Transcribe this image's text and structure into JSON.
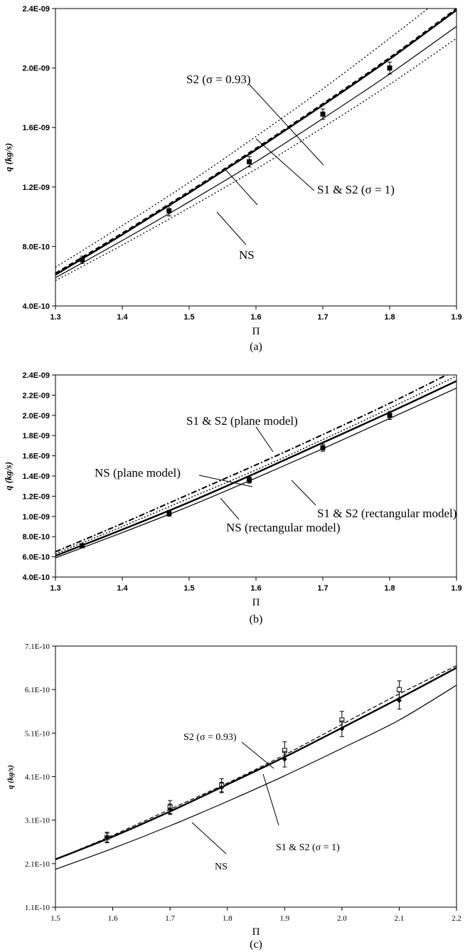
{
  "panels": [
    {
      "caption": "(a)",
      "ylabel": "q (kg/s)",
      "xlabel": "Π",
      "xticks": [
        "1.3",
        "1.4",
        "1.5",
        "1.6",
        "1.7",
        "1.8",
        "1.9"
      ],
      "yticks": [
        "4.0E-10",
        "8.0E-10",
        "1.2E-09",
        "1.6E-09",
        "2.0E-09",
        "2.4E-09"
      ],
      "annotations": [
        "S2 (σ = 0.93)",
        "S1 & S2 (σ = 1)",
        "NS"
      ]
    },
    {
      "caption": "(b)",
      "ylabel": "q (kg/s)",
      "xlabel": "Π",
      "xticks": [
        "1.3",
        "1.4",
        "1.5",
        "1.6",
        "1.7",
        "1.8",
        "1.9"
      ],
      "yticks": [
        "4.0E-10",
        "6.0E-10",
        "8.0E-10",
        "1.0E-09",
        "1.2E-09",
        "1.4E-09",
        "1.6E-09",
        "1.8E-09",
        "2.0E-09",
        "2.2E-09",
        "2.4E-09"
      ],
      "annotations": [
        "S1 & S2 (plane model)",
        "NS (plane model)",
        "S1 & S2 (rectangular model)",
        "NS (rectangular model)"
      ]
    },
    {
      "caption": "(c)",
      "ylabel": "q (kg/s)",
      "xlabel": "Π",
      "xticks": [
        "1.5",
        "1.6",
        "1.7",
        "1.8",
        "1.9",
        "2.0",
        "2.1",
        "2.2"
      ],
      "yticks": [
        "1.1E-10",
        "2.1E-10",
        "3.1E-10",
        "4.1E-10",
        "5.1E-10",
        "6.1E-10",
        "7.1E-10"
      ],
      "annotations": [
        "S2 (σ  = 0.93)",
        "S1 & S2 (σ = 1)",
        "NS"
      ]
    }
  ],
  "chart_data": [
    {
      "type": "line",
      "title": "",
      "xlabel": "Π",
      "ylabel": "q (kg/s)",
      "xlim": [
        1.3,
        1.9
      ],
      "ylim": [
        4e-10,
        2.4e-09
      ],
      "grid": false,
      "series": [
        {
          "name": "S2 (σ = 0.93)",
          "style": "dashed-thick",
          "x": [
            1.3,
            1.4,
            1.5,
            1.6,
            1.7,
            1.8,
            1.9
          ],
          "y": [
            6.2e-10,
            8.9e-10,
            1.17e-09,
            1.46e-09,
            1.76e-09,
            2.07e-09,
            2.4e-09
          ]
        },
        {
          "name": "S1 & S2 (σ = 1)",
          "style": "solid-thick",
          "x": [
            1.3,
            1.4,
            1.5,
            1.6,
            1.7,
            1.8,
            1.9
          ],
          "y": [
            6.1e-10,
            8.8e-10,
            1.16e-09,
            1.45e-09,
            1.75e-09,
            2.06e-09,
            2.39e-09
          ]
        },
        {
          "name": "NS",
          "style": "solid-thin",
          "x": [
            1.3,
            1.4,
            1.5,
            1.6,
            1.7,
            1.8,
            1.9
          ],
          "y": [
            5.9e-10,
            8.4e-10,
            1.1e-09,
            1.37e-09,
            1.66e-09,
            1.96e-09,
            2.28e-09
          ]
        },
        {
          "style": "dotted-upper",
          "x": [
            1.3,
            1.4,
            1.5,
            1.6,
            1.7,
            1.8,
            1.9
          ],
          "y": [
            6.6e-10,
            9.4e-10,
            1.23e-09,
            1.54e-09,
            1.86e-09,
            2.2e-09,
            2.55e-09
          ]
        },
        {
          "style": "dotted-lower",
          "x": [
            1.3,
            1.4,
            1.5,
            1.6,
            1.7,
            1.8,
            1.9
          ],
          "y": [
            5.7e-10,
            8.1e-10,
            1.06e-09,
            1.32e-09,
            1.6e-09,
            1.89e-09,
            2.2e-09
          ]
        }
      ],
      "points": {
        "x": [
          1.34,
          1.47,
          1.59,
          1.7,
          1.8
        ],
        "y": [
          7.1e-10,
          1.04e-09,
          1.37e-09,
          1.69e-09,
          2e-09
        ],
        "err": [
          2.5e-11,
          3.5e-11,
          3.5e-11,
          3.5e-11,
          4e-11
        ]
      }
    },
    {
      "type": "line",
      "title": "",
      "xlabel": "Π",
      "ylabel": "q (kg/s)",
      "xlim": [
        1.3,
        1.9
      ],
      "ylim": [
        4e-10,
        2.4e-09
      ],
      "grid": false,
      "series": [
        {
          "name": "S1 & S2 (plane model)",
          "style": "dashdot-thick",
          "x": [
            1.3,
            1.4,
            1.5,
            1.6,
            1.7,
            1.8,
            1.9
          ],
          "y": [
            6.5e-10,
            9.3e-10,
            1.22e-09,
            1.51e-09,
            1.81e-09,
            2.12e-09,
            2.45e-09
          ]
        },
        {
          "name": "NS (plane model)",
          "style": "dotted",
          "x": [
            1.3,
            1.4,
            1.5,
            1.6,
            1.7,
            1.8,
            1.9
          ],
          "y": [
            6.3e-10,
            9e-10,
            1.18e-09,
            1.46e-09,
            1.76e-09,
            2.07e-09,
            2.39e-09
          ]
        },
        {
          "name": "S1 & S2 (rectangular model)",
          "style": "solid-thick",
          "x": [
            1.3,
            1.4,
            1.5,
            1.6,
            1.7,
            1.8,
            1.9
          ],
          "y": [
            6.1e-10,
            8.7e-10,
            1.14e-09,
            1.43e-09,
            1.73e-09,
            2.03e-09,
            2.34e-09
          ]
        },
        {
          "name": "NS (rectangular model)",
          "style": "solid-thin",
          "x": [
            1.3,
            1.4,
            1.5,
            1.6,
            1.7,
            1.8,
            1.9
          ],
          "y": [
            5.9e-10,
            8.4e-10,
            1.1e-09,
            1.38e-09,
            1.67e-09,
            1.97e-09,
            2.27e-09
          ]
        }
      ],
      "points": {
        "x": [
          1.34,
          1.47,
          1.59,
          1.7,
          1.8
        ],
        "y": [
          7.1e-10,
          1.03e-09,
          1.36e-09,
          1.68e-09,
          2e-09
        ],
        "err": [
          2e-11,
          3e-11,
          3e-11,
          3.5e-11,
          4e-11
        ]
      }
    },
    {
      "type": "line",
      "title": "",
      "xlabel": "Π",
      "ylabel": "q (kg/s)",
      "xlim": [
        1.5,
        2.2
      ],
      "ylim": [
        1.1e-10,
        7.1e-10
      ],
      "grid": false,
      "series": [
        {
          "name": "S2 (σ  = 0.93)",
          "style": "dashed",
          "x": [
            1.5,
            1.6,
            1.7,
            1.8,
            1.9,
            2.0,
            2.1,
            2.2
          ],
          "y": [
            2.2e-10,
            2.75e-10,
            3.35e-10,
            3.95e-10,
            4.6e-10,
            5.3e-10,
            6e-10,
            6.65e-10
          ]
        },
        {
          "name": "S1 & S2 (σ = 1)",
          "style": "solid-thick",
          "x": [
            1.5,
            1.6,
            1.7,
            1.8,
            1.9,
            2.0,
            2.1,
            2.2
          ],
          "y": [
            2.2e-10,
            2.72e-10,
            3.3e-10,
            3.92e-10,
            4.55e-10,
            5.22e-10,
            5.9e-10,
            6.6e-10
          ]
        },
        {
          "name": "NS",
          "style": "solid-thin",
          "x": [
            1.5,
            1.6,
            1.7,
            1.8,
            1.9,
            2.0,
            2.1,
            2.2
          ],
          "y": [
            1.97e-10,
            2.45e-10,
            2.97e-10,
            3.53e-10,
            4.12e-10,
            4.75e-10,
            5.4e-10,
            6.2e-10
          ]
        }
      ],
      "points_open": {
        "x": [
          1.59,
          1.7,
          1.79,
          1.9,
          2.0,
          2.1
        ],
        "y": [
          2.7e-10,
          3.4e-10,
          3.9e-10,
          4.7e-10,
          5.4e-10,
          6.1e-10
        ],
        "err": [
          1.2e-11,
          1.5e-11,
          1.5e-11,
          2e-11,
          2e-11,
          2e-11
        ]
      },
      "points_filled": {
        "x": [
          1.59,
          1.7,
          1.79,
          1.9,
          2.0,
          2.1
        ],
        "y": [
          2.7e-10,
          3.35e-10,
          3.85e-10,
          4.5e-10,
          5.2e-10,
          5.85e-10
        ],
        "err": [
          1e-11,
          1.2e-11,
          1.2e-11,
          1.8e-11,
          1.8e-11,
          2e-11
        ]
      }
    }
  ]
}
